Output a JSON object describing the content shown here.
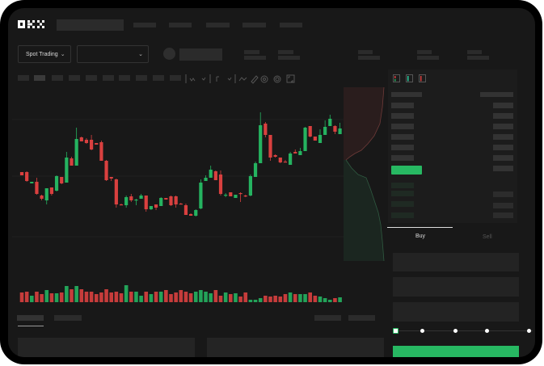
{
  "header": {
    "logo_text": "OKX"
  },
  "market_bar": {
    "mode_label": "Spot Trading",
    "pair_value": ""
  },
  "trade_panel": {
    "buy_label": "Buy",
    "sell_label": "Sell"
  },
  "colors": {
    "up": "#25b360",
    "down": "#d9403f",
    "background": "#181818",
    "accent": "#27b862"
  },
  "chart": {
    "type": "candlestick",
    "candles_ohlc": [
      [
        97,
        97,
        93,
        93
      ],
      [
        97,
        98,
        85,
        86
      ],
      [
        83,
        85,
        83,
        85
      ],
      [
        85,
        90,
        69,
        70
      ],
      [
        68,
        69,
        62,
        64
      ],
      [
        62,
        77,
        57,
        77
      ],
      [
        78,
        78,
        68,
        70
      ],
      [
        74,
        93,
        73,
        92
      ],
      [
        91,
        91,
        82,
        83
      ],
      [
        84,
        122,
        84,
        115
      ],
      [
        114,
        116,
        105,
        105
      ],
      [
        105,
        152,
        105,
        138
      ],
      [
        140,
        141,
        135,
        135
      ],
      [
        137,
        139,
        132,
        133
      ],
      [
        137,
        143,
        124,
        125
      ],
      [
        133,
        133,
        131,
        131
      ],
      [
        134,
        136,
        111,
        111
      ],
      [
        111,
        112,
        86,
        87
      ],
      [
        91,
        91,
        86,
        89
      ],
      [
        88,
        89,
        53,
        57
      ],
      [
        57,
        58,
        56,
        56
      ],
      [
        56,
        68,
        53,
        66
      ],
      [
        67,
        70,
        60,
        62
      ],
      [
        62,
        64,
        56,
        63
      ],
      [
        64,
        70,
        64,
        68
      ],
      [
        68,
        68,
        48,
        51
      ],
      [
        51,
        55,
        50,
        55
      ],
      [
        57,
        57,
        50,
        53
      ],
      [
        55,
        66,
        55,
        65
      ],
      [
        65,
        65,
        63,
        63
      ],
      [
        67,
        68,
        55,
        56
      ],
      [
        67,
        68,
        53,
        57
      ],
      [
        58,
        59,
        57,
        57
      ],
      [
        56,
        58,
        44,
        44
      ],
      [
        45,
        46,
        43,
        43
      ],
      [
        43,
        51,
        42,
        50
      ],
      [
        52,
        88,
        51,
        84
      ],
      [
        86,
        93,
        86,
        90
      ],
      [
        90,
        105,
        90,
        100
      ],
      [
        98,
        99,
        87,
        87
      ],
      [
        94,
        99,
        68,
        70
      ],
      [
        68,
        71,
        66,
        69
      ],
      [
        72,
        72,
        67,
        67
      ],
      [
        65,
        69,
        65,
        69
      ],
      [
        71,
        72,
        60,
        70
      ],
      [
        68,
        69,
        66,
        67
      ],
      [
        68,
        94,
        67,
        92
      ],
      [
        91,
        110,
        91,
        108
      ],
      [
        108,
        171,
        108,
        155
      ],
      [
        157,
        159,
        140,
        143
      ],
      [
        143,
        143,
        111,
        115
      ],
      [
        118,
        119,
        115,
        116
      ],
      [
        115,
        115,
        108,
        109
      ],
      [
        110,
        112,
        109,
        109
      ],
      [
        106,
        122,
        106,
        120
      ],
      [
        122,
        125,
        120,
        120
      ],
      [
        118,
        127,
        118,
        123
      ],
      [
        123,
        153,
        123,
        152
      ],
      [
        154,
        154,
        140,
        141
      ],
      [
        141,
        141,
        136,
        136
      ],
      [
        133,
        150,
        133,
        143
      ],
      [
        143,
        161,
        143,
        153
      ],
      [
        154,
        168,
        154,
        163
      ],
      [
        154,
        155,
        144,
        147
      ],
      [
        144,
        158,
        144,
        151
      ]
    ],
    "volumes": [
      12,
      13,
      8,
      13,
      10,
      15,
      11,
      11,
      12,
      20,
      16,
      20,
      16,
      13,
      13,
      10,
      12,
      16,
      12,
      13,
      11,
      21,
      13,
      13,
      8,
      13,
      10,
      13,
      13,
      15,
      10,
      12,
      15,
      13,
      11,
      13,
      15,
      13,
      11,
      15,
      8,
      12,
      10,
      11,
      7,
      12,
      3,
      3,
      5,
      8,
      7,
      8,
      7,
      10,
      12,
      10,
      10,
      10,
      12,
      8,
      7,
      5,
      3,
      5,
      6
    ]
  }
}
